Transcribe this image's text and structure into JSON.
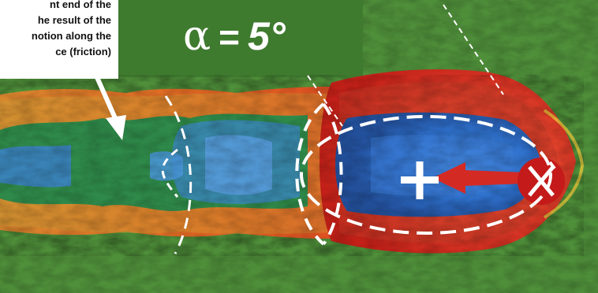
{
  "callout": {
    "lines": [
      "nt end  of  the",
      "he result of the",
      "notion along the",
      "ce (friction)"
    ]
  },
  "angle_label": {
    "symbol": "α",
    "equals": "=",
    "value": "5°"
  },
  "colors": {
    "background_green": "#4f8f3a",
    "wake_orange": "#e2752a",
    "shock_red": "#d8281e",
    "core_blue": "#2f72c8",
    "marker_circle": "#c41a1a",
    "marker_white": "#ffffff"
  },
  "icons": {
    "center_marker": "plus-icon",
    "end_marker": "circle-cross-icon"
  }
}
